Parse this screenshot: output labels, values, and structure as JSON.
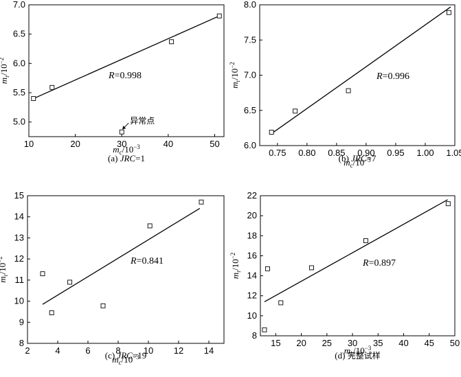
{
  "figure": {
    "x_label_sub": "c",
    "y_label_sub": "r",
    "x_label_base": "m",
    "y_label_base": "m",
    "x_label_exp": "/10",
    "x_label_pow": "−3",
    "y_label_exp": "/10",
    "y_label_pow": "−2"
  },
  "chart_data": [
    {
      "type": "scatter",
      "caption_prefix": "(a)",
      "caption_italic": "JRC",
      "caption_suffix": "=1",
      "annotation_italic": "R",
      "annotation": "=0.998",
      "outlier_label": "异常点",
      "xlim": [
        10,
        52
      ],
      "ylim": [
        4.75,
        7.0
      ],
      "xticks": [
        "10",
        "20",
        "30",
        "40",
        "50"
      ],
      "xtick_values": [
        10,
        20,
        30,
        40,
        50
      ],
      "yticks": [
        "5.0",
        "5.5",
        "6.0",
        "6.5",
        "7.0"
      ],
      "ytick_values": [
        5.0,
        5.5,
        6.0,
        6.5,
        7.0
      ],
      "points": [
        {
          "x": 11.0,
          "y": 5.4
        },
        {
          "x": 15.0,
          "y": 5.59
        },
        {
          "x": 30.0,
          "y": 4.83
        },
        {
          "x": 40.7,
          "y": 6.37
        },
        {
          "x": 51.0,
          "y": 6.81
        }
      ],
      "fit_line": [
        {
          "x": 11.0,
          "y": 5.4
        },
        {
          "x": 51.0,
          "y": 6.81
        }
      ]
    },
    {
      "type": "scatter",
      "caption_prefix": "(b)",
      "caption_italic": "JRC",
      "caption_suffix": "=7",
      "annotation_italic": "R",
      "annotation": "=0.996",
      "xlim": [
        0.72,
        1.05
      ],
      "ylim": [
        6.0,
        8.0
      ],
      "xticks": [
        "0.75",
        "0.80",
        "0.85",
        "0.90",
        "0.95",
        "1.00",
        "1.05"
      ],
      "xtick_values": [
        0.75,
        0.8,
        0.85,
        0.9,
        0.95,
        1.0,
        1.05
      ],
      "yticks": [
        "6.0",
        "6.5",
        "7.0",
        "7.5",
        "8.0"
      ],
      "ytick_values": [
        6.0,
        6.5,
        7.0,
        7.5,
        8.0
      ],
      "points": [
        {
          "x": 0.74,
          "y": 6.19
        },
        {
          "x": 0.78,
          "y": 6.49
        },
        {
          "x": 0.87,
          "y": 6.78
        },
        {
          "x": 1.04,
          "y": 7.89
        }
      ],
      "fit_line": [
        {
          "x": 0.74,
          "y": 6.17
        },
        {
          "x": 1.043,
          "y": 7.97
        }
      ]
    },
    {
      "type": "scatter",
      "caption_prefix": "(c)",
      "caption_italic": "JRC",
      "caption_suffix": "=19",
      "annotation_italic": "R",
      "annotation": "=0.841",
      "xlim": [
        2,
        15
      ],
      "ylim": [
        8,
        15
      ],
      "xticks": [
        "2",
        "4",
        "6",
        "8",
        "10",
        "12",
        "14"
      ],
      "xtick_values": [
        2,
        4,
        6,
        8,
        10,
        12,
        14
      ],
      "yticks": [
        "8",
        "9",
        "10",
        "11",
        "12",
        "13",
        "14",
        "15"
      ],
      "ytick_values": [
        8,
        9,
        10,
        11,
        12,
        13,
        14,
        15
      ],
      "points": [
        {
          "x": 3.0,
          "y": 11.3
        },
        {
          "x": 3.6,
          "y": 9.45
        },
        {
          "x": 4.8,
          "y": 10.9
        },
        {
          "x": 7.0,
          "y": 9.78
        },
        {
          "x": 10.1,
          "y": 13.57
        },
        {
          "x": 13.5,
          "y": 14.7
        }
      ],
      "fit_line": [
        {
          "x": 3.0,
          "y": 9.85
        },
        {
          "x": 13.4,
          "y": 14.4
        }
      ]
    },
    {
      "type": "scatter",
      "caption_prefix": "(d)",
      "caption_italic": "",
      "caption_suffix": "完整试样",
      "annotation_italic": "R",
      "annotation": "=0.897",
      "xlim": [
        12,
        50
      ],
      "ylim": [
        8,
        22
      ],
      "xticks": [
        "15",
        "20",
        "25",
        "30",
        "35",
        "40",
        "45",
        "50"
      ],
      "xtick_values": [
        15,
        20,
        25,
        30,
        35,
        40,
        45,
        50
      ],
      "yticks": [
        "8",
        "10",
        "12",
        "14",
        "16",
        "18",
        "20",
        "22"
      ],
      "ytick_values": [
        8,
        10,
        12,
        14,
        16,
        18,
        20,
        22
      ],
      "points": [
        {
          "x": 12.8,
          "y": 8.6
        },
        {
          "x": 13.4,
          "y": 14.7
        },
        {
          "x": 16.0,
          "y": 11.3
        },
        {
          "x": 22.0,
          "y": 14.8
        },
        {
          "x": 32.6,
          "y": 17.5
        },
        {
          "x": 48.7,
          "y": 21.2
        }
      ],
      "fit_line": [
        {
          "x": 12.8,
          "y": 11.4
        },
        {
          "x": 48.6,
          "y": 21.6
        }
      ]
    }
  ]
}
